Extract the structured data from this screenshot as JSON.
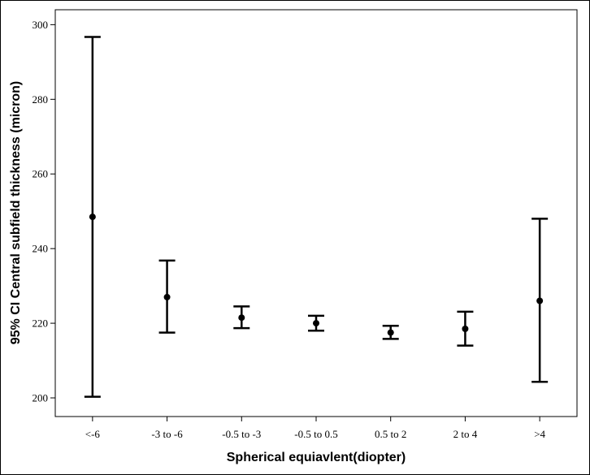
{
  "chart_data": {
    "type": "errorbar",
    "xlabel": "Spherical equiavlent(diopter)",
    "ylabel": "95% CI Central subfield thickness (micron)",
    "ylim": [
      195,
      304
    ],
    "yticks": [
      200,
      220,
      240,
      260,
      280,
      300
    ],
    "grid": false,
    "categories": [
      "<-6",
      "-3 to -6",
      "-0.5 to -3",
      "-0.5 to 0.5",
      "0.5 to 2",
      "2 to 4",
      ">4"
    ],
    "mean": [
      248.5,
      227,
      221.5,
      220,
      217.5,
      218.5,
      226
    ],
    "lower": [
      200.3,
      217.5,
      218.7,
      218,
      215.8,
      214,
      204.3
    ],
    "upper": [
      296.7,
      236.8,
      224.5,
      222,
      219.3,
      223.1,
      248
    ]
  }
}
